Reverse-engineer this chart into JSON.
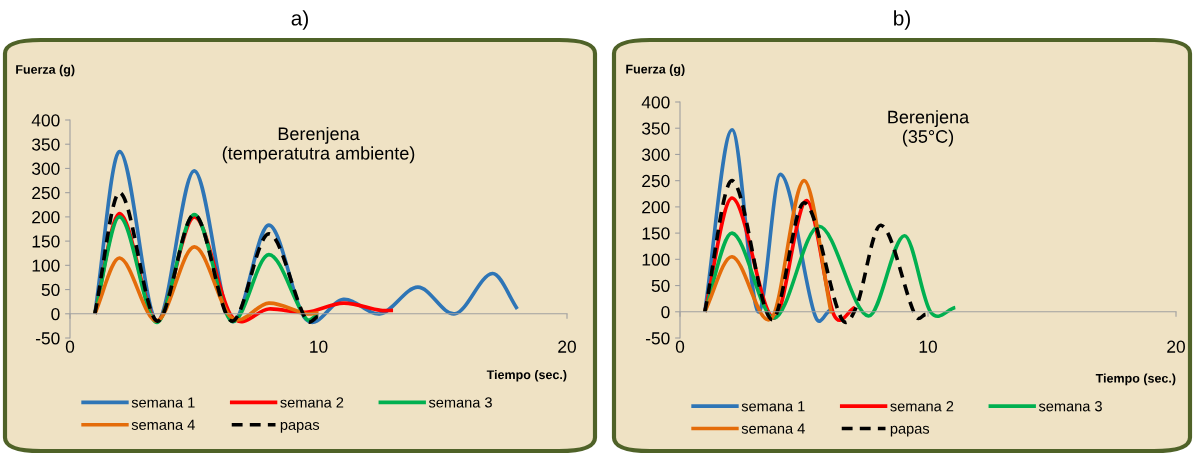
{
  "chart_data": [
    {
      "type": "line",
      "title": "Berenjena\n(temperatutra ambiente)",
      "xlabel": "Tiempo (sec.)",
      "ylabel": "Fuerza (g)",
      "annotations": [
        "a)"
      ],
      "xlim": [
        0,
        20
      ],
      "xticks": [
        0,
        10,
        20
      ],
      "ylim": [
        -50,
        400
      ],
      "yticks": [
        -50,
        0,
        50,
        100,
        150,
        200,
        250,
        300,
        350,
        400
      ],
      "legend": "bottom",
      "grid": false,
      "series": [
        {
          "name": "semana 1",
          "color": "#2e75b6",
          "x": [
            1,
            2,
            3.5,
            5,
            6.5,
            8,
            9.5,
            11,
            12.5,
            14,
            15.5,
            17,
            18
          ],
          "values": [
            0,
            335,
            -15,
            295,
            -15,
            183,
            -12,
            30,
            0,
            55,
            0,
            83,
            10
          ]
        },
        {
          "name": "semana 2",
          "color": "#ff0000",
          "x": [
            1,
            2,
            3.5,
            5,
            6.5,
            8,
            9.5,
            11,
            12.5,
            13
          ],
          "values": [
            0,
            207,
            -15,
            200,
            -5,
            10,
            3,
            22,
            7,
            7
          ]
        },
        {
          "name": "semana 3",
          "color": "#00b050",
          "x": [
            1,
            2,
            3.5,
            5,
            6.5,
            8,
            9.5,
            10
          ],
          "values": [
            0,
            200,
            -18,
            205,
            -15,
            122,
            -10,
            0
          ]
        },
        {
          "name": "semana 4",
          "color": "#e46c0a",
          "x": [
            1,
            2,
            3.5,
            5,
            6.5,
            8,
            9.5,
            10
          ],
          "values": [
            0,
            115,
            -15,
            138,
            -8,
            22,
            0,
            2
          ]
        },
        {
          "name": "papas",
          "color": "#000000",
          "line_style": "dashed",
          "x": [
            1,
            2,
            3.5,
            5,
            6.5,
            8,
            9.5,
            10
          ],
          "values": [
            0,
            250,
            -15,
            205,
            -15,
            165,
            -12,
            -5
          ]
        }
      ]
    },
    {
      "type": "line",
      "title": "Berenjena\n(35°C)",
      "xlabel": "Tiempo (sec.)",
      "ylabel": "Fuerza (g)",
      "annotations": [
        "b)"
      ],
      "xlim": [
        0,
        20
      ],
      "xticks": [
        0,
        10,
        20
      ],
      "ylim": [
        -50,
        400
      ],
      "yticks": [
        -50,
        0,
        50,
        100,
        150,
        200,
        250,
        300,
        350,
        400
      ],
      "legend": "bottom",
      "grid": false,
      "series": [
        {
          "name": "semana 1",
          "color": "#2e75b6",
          "x": [
            1,
            2.1,
            3.15,
            4.05,
            5.45,
            6.05
          ],
          "values": [
            0,
            347,
            0,
            262,
            -8,
            3
          ]
        },
        {
          "name": "semana 2",
          "color": "#ff0000",
          "x": [
            1,
            2.1,
            3.8,
            5.1,
            6.2,
            7.05
          ],
          "values": [
            0,
            217,
            -12,
            212,
            -5,
            8
          ]
        },
        {
          "name": "semana 3",
          "color": "#00b050",
          "x": [
            1,
            2.1,
            3.8,
            5.6,
            7.6,
            9.05,
            10.1,
            11.1
          ],
          "values": [
            0,
            150,
            -12,
            163,
            -8,
            145,
            0,
            8
          ]
        },
        {
          "name": "semana 4",
          "color": "#e46c0a",
          "x": [
            1,
            2.1,
            3.7,
            5.0,
            6.1
          ],
          "values": [
            0,
            105,
            -12,
            250,
            -3
          ]
        },
        {
          "name": "papas",
          "color": "#000000",
          "line_style": "dashed",
          "x": [
            1,
            2.1,
            3.7,
            5.0,
            6.5,
            7.1,
            8.1,
            9.5,
            9.9
          ],
          "values": [
            0,
            250,
            -15,
            208,
            -12,
            8,
            165,
            -8,
            -5
          ]
        }
      ]
    }
  ]
}
